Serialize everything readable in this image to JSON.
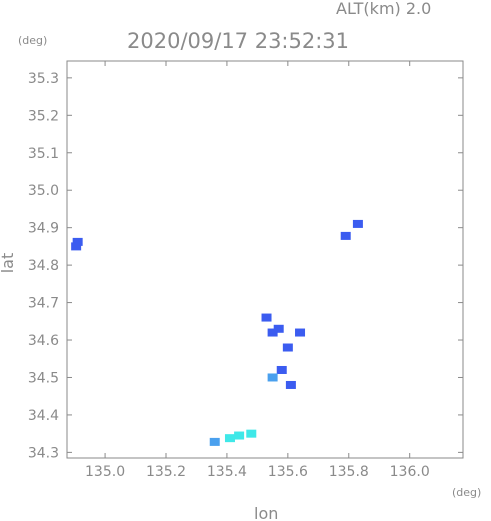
{
  "header": {
    "altitude_label": "ALT(km) 2.0",
    "timestamp": "2020/09/17 23:52:31"
  },
  "chart_data": {
    "type": "heatmap",
    "title": "2020/09/17 23:52:31",
    "subtitle": "ALT(km) 2.0",
    "xlabel": "lon",
    "ylabel": "lat",
    "x_unit": "(deg)",
    "y_unit": "(deg)",
    "xlim": [
      134.875,
      136.175
    ],
    "ylim": [
      34.285,
      35.345
    ],
    "x_ticks": [
      135.0,
      135.2,
      135.4,
      135.6,
      135.8,
      136.0
    ],
    "x_tick_labels": [
      "135.0",
      "135.2",
      "135.4",
      "135.6",
      "135.8",
      "136.0"
    ],
    "y_ticks": [
      34.3,
      34.4,
      34.5,
      34.6,
      34.7,
      34.8,
      34.9,
      35.0,
      35.1,
      35.2,
      35.3
    ],
    "y_tick_labels": [
      "34.3",
      "34.4",
      "34.5",
      "34.6",
      "34.7",
      "34.8",
      "34.9",
      "35.0",
      "35.1",
      "35.2",
      "35.3"
    ],
    "grid": false,
    "colors": {
      "frame": "#8a8a8a",
      "low": "#3b5cf0",
      "mid": "#4aa0ee",
      "high": "#3fe8e8"
    },
    "echo_cells": [
      {
        "lon": 134.91,
        "lat": 34.862,
        "level": "low"
      },
      {
        "lon": 134.905,
        "lat": 34.85,
        "level": "low"
      },
      {
        "lon": 135.57,
        "lat": 34.63,
        "level": "low"
      },
      {
        "lon": 135.55,
        "lat": 34.62,
        "level": "low"
      },
      {
        "lon": 135.6,
        "lat": 34.58,
        "level": "low"
      },
      {
        "lon": 135.58,
        "lat": 34.52,
        "level": "low"
      },
      {
        "lon": 135.55,
        "lat": 34.5,
        "level": "mid"
      },
      {
        "lon": 135.61,
        "lat": 34.48,
        "level": "low"
      },
      {
        "lon": 135.64,
        "lat": 34.62,
        "level": "low"
      },
      {
        "lon": 135.53,
        "lat": 34.66,
        "level": "low"
      },
      {
        "lon": 135.44,
        "lat": 34.345,
        "level": "high"
      },
      {
        "lon": 135.41,
        "lat": 34.338,
        "level": "high"
      },
      {
        "lon": 135.36,
        "lat": 34.328,
        "level": "mid"
      },
      {
        "lon": 135.48,
        "lat": 34.35,
        "level": "high"
      },
      {
        "lon": 135.79,
        "lat": 34.878,
        "level": "low"
      },
      {
        "lon": 135.83,
        "lat": 34.91,
        "level": "low"
      }
    ]
  }
}
